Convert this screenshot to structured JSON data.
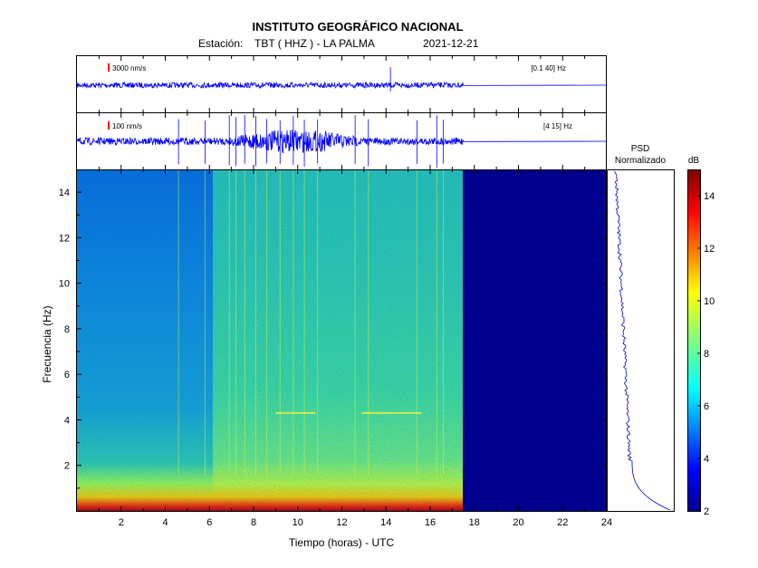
{
  "header": {
    "title": "INSTITUTO GEOGRÁFICO NACIONAL",
    "station_label": "Estación:",
    "station": "TBT ( HHZ ) - LA PALMA",
    "date": "2021-12-21"
  },
  "chart_data": [
    {
      "type": "line",
      "panel": "seismogram-1",
      "scale_label": "3000 nm/s",
      "band_label": "[0.1 40] Hz",
      "x_range": [
        0,
        24
      ],
      "data_end_hour": 17.5,
      "spike_hours": [
        14.2
      ]
    },
    {
      "type": "line",
      "panel": "seismogram-2",
      "scale_label": "100 nm/s",
      "band_label": "[4 15] Hz",
      "x_range": [
        0,
        24
      ],
      "data_end_hour": 17.5,
      "spike_hours": [
        4.6,
        5.8,
        6.9,
        7.2,
        7.6,
        8.1,
        8.6,
        9.2,
        9.8,
        10.3,
        10.9,
        12.6,
        13.2,
        15.4,
        16.3,
        16.6
      ]
    },
    {
      "type": "heatmap",
      "panel": "spectrogram",
      "xlabel": "Tiempo (horas) - UTC",
      "ylabel": "Frecuencia (Hz)",
      "xlim": [
        0,
        24
      ],
      "ylim": [
        0,
        15
      ],
      "x_ticks": [
        "2",
        "4",
        "6",
        "8",
        "10",
        "12",
        "14",
        "16",
        "18",
        "20",
        "22",
        "24"
      ],
      "y_ticks": [
        "2",
        "4",
        "6",
        "8",
        "10",
        "12",
        "14"
      ],
      "data_end_hour": 17.5,
      "regime_change_hour": 6.2
    },
    {
      "type": "line",
      "panel": "psd",
      "title_line1": "PSD",
      "title_line2": "Normalizado"
    },
    {
      "type": "colorbar",
      "unit": "dB",
      "range": [
        2,
        15
      ],
      "ticks": [
        "2",
        "4",
        "6",
        "8",
        "10",
        "12",
        "14"
      ]
    }
  ],
  "colors": {
    "trace": "#0000ff",
    "scale_marker": "#ff0000",
    "background_fill": "#00008f"
  }
}
